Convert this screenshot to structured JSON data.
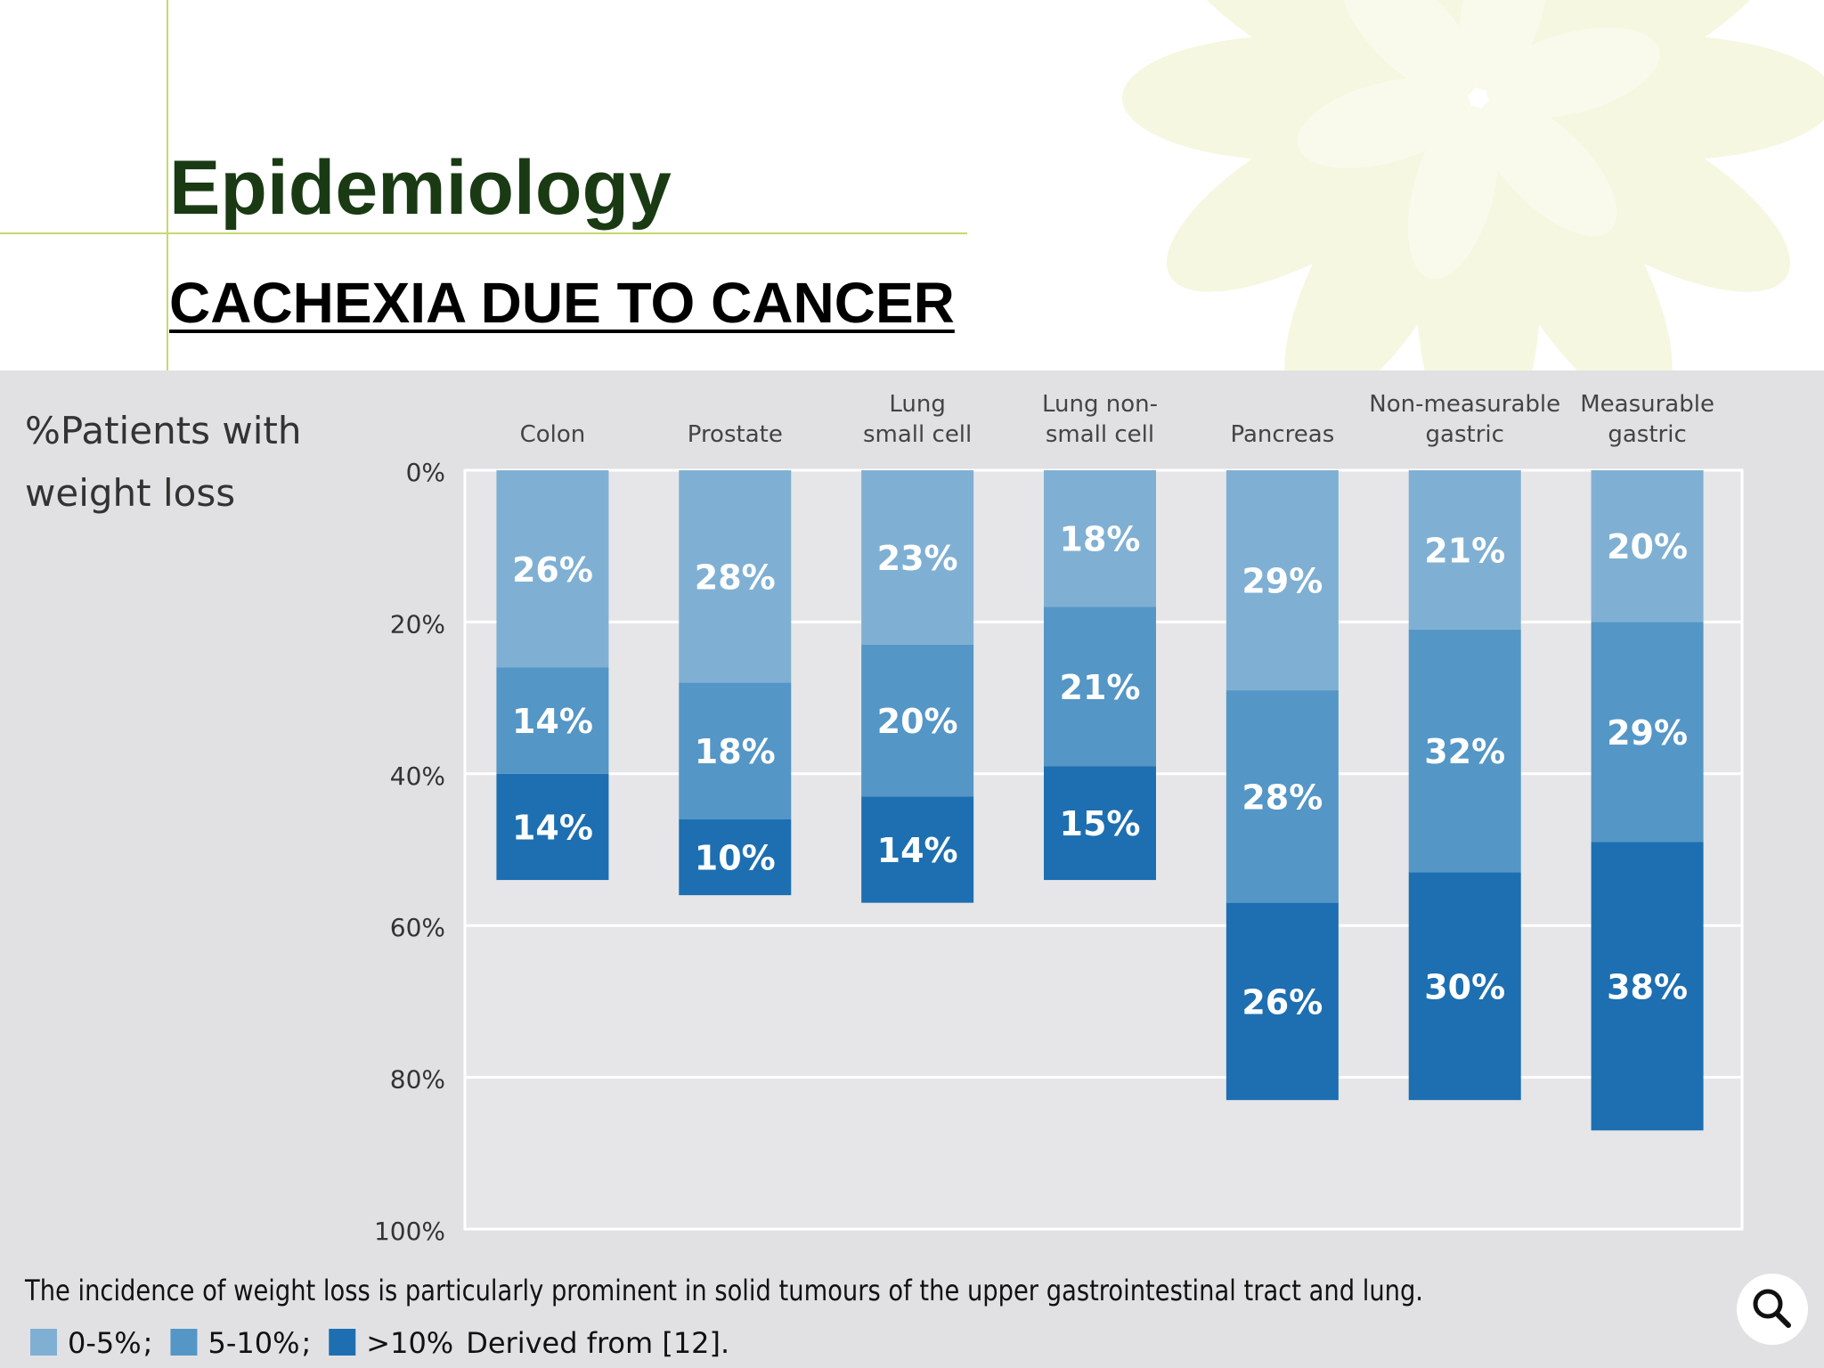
{
  "slide": {
    "title": "Epidemiology",
    "subtitle": "CACHEXIA DUE TO CANCER",
    "zoom_icon": "magnifier-icon"
  },
  "chart_data": {
    "type": "bar",
    "stacked": true,
    "orientation": "vertical-down",
    "ylabel": [
      "%Patients with",
      "weight loss"
    ],
    "ylim": [
      0,
      100
    ],
    "y_ticks": [
      "0%",
      "20%",
      "40%",
      "60%",
      "80%",
      "100%"
    ],
    "grid": true,
    "categories": [
      [
        "Colon"
      ],
      [
        "Prostate"
      ],
      [
        "Lung",
        "small cell"
      ],
      [
        "Lung non-",
        "small cell"
      ],
      [
        "Pancreas"
      ],
      [
        "Non-measurable",
        "gastric"
      ],
      [
        "Measurable",
        "gastric"
      ]
    ],
    "series": [
      {
        "name": "0-5%",
        "color": "#7fb0d3",
        "values": [
          26,
          28,
          23,
          18,
          29,
          21,
          20
        ]
      },
      {
        "name": "5-10%",
        "color": "#5496c6",
        "values": [
          14,
          18,
          20,
          21,
          28,
          32,
          29
        ]
      },
      {
        "name": ">10%",
        "color": "#1d6fb1",
        "values": [
          14,
          10,
          14,
          15,
          26,
          30,
          38
        ]
      }
    ],
    "value_labels": [
      [
        "26%",
        "28%",
        "23%",
        "18%",
        "29%",
        "21%",
        "20%"
      ],
      [
        "14%",
        "18%",
        "20%",
        "21%",
        "28%",
        "32%",
        "29%"
      ],
      [
        "14%",
        "10%",
        "14%",
        "15%",
        "26%",
        "30%",
        "38%"
      ]
    ],
    "caption": "The incidence of weight loss is particularly prominent in solid tumours of the upper gastrointestinal tract and lung.",
    "legend": {
      "placement": "bottom-left",
      "separator": ";",
      "source_note": "Derived from [12]."
    }
  }
}
